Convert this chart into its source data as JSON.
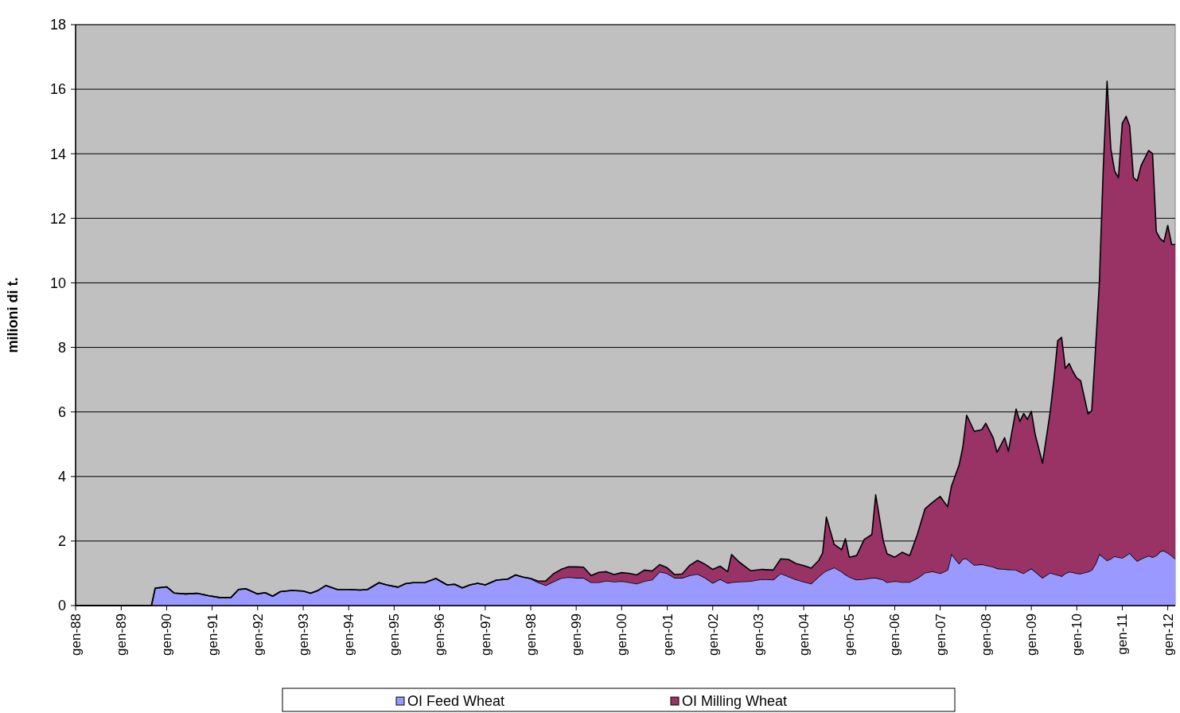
{
  "chart_data": {
    "type": "area",
    "stacked": true,
    "ylabel": "milioni di t.",
    "x": [
      "1988-01",
      "1989-09",
      "1989-10",
      "1990-01",
      "1990-03",
      "1990-06",
      "1990-09",
      "1990-12",
      "1991-03",
      "1991-06",
      "1991-08",
      "1991-10",
      "1992-01",
      "1992-03",
      "1992-05",
      "1992-07",
      "1992-10",
      "1993-01",
      "1993-03",
      "1993-05",
      "1993-07",
      "1993-10",
      "1994-01",
      "1994-04",
      "1994-06",
      "1994-09",
      "1994-11",
      "1995-02",
      "1995-04",
      "1995-06",
      "1995-09",
      "1995-12",
      "1996-03",
      "1996-05",
      "1996-07",
      "1996-09",
      "1996-11",
      "1997-01",
      "1997-04",
      "1997-07",
      "1997-09",
      "1997-11",
      "1998-01",
      "1998-03",
      "1998-05",
      "1998-07",
      "1998-09",
      "1998-11",
      "1999-01",
      "1999-03",
      "1999-05",
      "1999-07",
      "1999-09",
      "1999-11",
      "2000-01",
      "2000-03",
      "2000-05",
      "2000-07",
      "2000-09",
      "2000-11",
      "2001-01",
      "2001-03",
      "2001-05",
      "2001-07",
      "2001-09",
      "2001-11",
      "2002-01",
      "2002-03",
      "2002-05",
      "2002-06",
      "2002-08",
      "2002-11",
      "2003-02",
      "2003-05",
      "2003-07",
      "2003-09",
      "2003-11",
      "2004-01",
      "2004-03",
      "2004-05",
      "2004-06",
      "2004-07",
      "2004-09",
      "2004-11",
      "2004-12",
      "2005-01",
      "2005-03",
      "2005-05",
      "2005-07",
      "2005-08",
      "2005-10",
      "2005-11",
      "2006-01",
      "2006-03",
      "2006-05",
      "2006-07",
      "2006-09",
      "2006-11",
      "2007-01",
      "2007-03",
      "2007-04",
      "2007-06",
      "2007-07",
      "2007-08",
      "2007-10",
      "2007-12",
      "2008-01",
      "2008-03",
      "2008-04",
      "2008-06",
      "2008-07",
      "2008-09",
      "2008-10",
      "2008-11",
      "2008-12",
      "2009-01",
      "2009-02",
      "2009-04",
      "2009-06",
      "2009-07",
      "2009-08",
      "2009-09",
      "2009-10",
      "2009-11",
      "2009-12",
      "2010-01",
      "2010-02",
      "2010-04",
      "2010-05",
      "2010-06",
      "2010-07",
      "2010-08",
      "2010-09",
      "2010-10",
      "2010-11",
      "2010-12",
      "2011-01",
      "2011-02",
      "2011-03",
      "2011-04",
      "2011-05",
      "2011-06",
      "2011-08",
      "2011-09",
      "2011-10",
      "2011-11",
      "2011-12",
      "2012-01",
      "2012-02",
      "2012-03"
    ],
    "series": [
      {
        "name": "OI Feed Wheat",
        "color": "#9999ff",
        "values": [
          0,
          0,
          0.54,
          0.58,
          0.39,
          0.36,
          0.38,
          0.31,
          0.25,
          0.25,
          0.5,
          0.52,
          0.36,
          0.4,
          0.29,
          0.43,
          0.47,
          0.45,
          0.38,
          0.47,
          0.62,
          0.5,
          0.5,
          0.48,
          0.5,
          0.71,
          0.64,
          0.57,
          0.68,
          0.71,
          0.71,
          0.84,
          0.64,
          0.66,
          0.55,
          0.64,
          0.69,
          0.64,
          0.79,
          0.82,
          0.95,
          0.88,
          0.84,
          0.72,
          0.63,
          0.74,
          0.85,
          0.88,
          0.86,
          0.86,
          0.72,
          0.72,
          0.77,
          0.74,
          0.76,
          0.72,
          0.68,
          0.76,
          0.8,
          1.05,
          1.0,
          0.86,
          0.86,
          0.94,
          0.98,
          0.86,
          0.7,
          0.82,
          0.7,
          0.72,
          0.74,
          0.76,
          0.82,
          0.8,
          1.0,
          0.9,
          0.81,
          0.74,
          0.68,
          0.9,
          1.0,
          1.08,
          1.18,
          1.05,
          0.96,
          0.89,
          0.8,
          0.82,
          0.86,
          0.86,
          0.8,
          0.72,
          0.76,
          0.73,
          0.73,
          0.85,
          1.02,
          1.06,
          1.0,
          1.1,
          1.6,
          1.3,
          1.45,
          1.45,
          1.26,
          1.28,
          1.25,
          1.2,
          1.15,
          1.13,
          1.12,
          1.11,
          1.05,
          1.0,
          1.08,
          1.15,
          1.05,
          0.86,
          1.02,
          0.98,
          0.95,
          0.91,
          1.0,
          1.05,
          1.03,
          1.0,
          0.99,
          1.05,
          1.1,
          1.3,
          1.6,
          1.5,
          1.4,
          1.45,
          1.53,
          1.5,
          1.48,
          1.55,
          1.63,
          1.5,
          1.38,
          1.45,
          1.55,
          1.5,
          1.55,
          1.68,
          1.7,
          1.63,
          1.55,
          1.45
        ]
      },
      {
        "name": "OI Milling Wheat",
        "color": "#993366",
        "values": [
          0,
          0,
          0,
          0,
          0,
          0,
          0,
          0,
          0,
          0,
          0,
          0,
          0,
          0,
          0,
          0,
          0,
          0,
          0,
          0,
          0,
          0,
          0,
          0,
          0,
          0,
          0,
          0,
          0,
          0,
          0,
          0,
          0,
          0,
          0,
          0,
          0,
          0,
          0,
          0,
          0,
          0,
          0,
          0.04,
          0.13,
          0.24,
          0.27,
          0.32,
          0.34,
          0.33,
          0.21,
          0.31,
          0.28,
          0.22,
          0.26,
          0.28,
          0.27,
          0.34,
          0.27,
          0.22,
          0.17,
          0.1,
          0.12,
          0.31,
          0.42,
          0.42,
          0.42,
          0.4,
          0.35,
          0.86,
          0.61,
          0.32,
          0.3,
          0.3,
          0.45,
          0.53,
          0.49,
          0.5,
          0.48,
          0.5,
          0.63,
          1.66,
          0.72,
          0.68,
          1.11,
          0.61,
          0.75,
          1.23,
          1.34,
          2.57,
          1.2,
          0.88,
          0.74,
          0.92,
          0.82,
          1.35,
          1.98,
          2.14,
          2.38,
          1.96,
          2.1,
          3.05,
          3.45,
          4.45,
          4.14,
          4.17,
          4.4,
          4.0,
          3.6,
          4.07,
          3.66,
          4.98,
          4.65,
          4.95,
          4.69,
          4.87,
          4.25,
          3.55,
          4.97,
          6.02,
          7.26,
          7.4,
          6.35,
          6.45,
          6.22,
          6.05,
          5.98,
          4.89,
          4.94,
          6.7,
          8.4,
          12.0,
          14.85,
          12.7,
          11.93,
          11.76,
          13.46,
          13.61,
          13.24,
          11.76,
          11.78,
          12.18,
          12.55,
          12.5,
          10.04,
          9.69,
          9.57,
          10.15,
          9.64,
          9.74
        ]
      }
    ],
    "xlim": [
      "1988-01",
      "2012-03"
    ],
    "xticks": [
      {
        "value": "1988-01",
        "label": "gen-88"
      },
      {
        "value": "1989-01",
        "label": "gen-89"
      },
      {
        "value": "1990-01",
        "label": "gen-90"
      },
      {
        "value": "1991-01",
        "label": "gen-91"
      },
      {
        "value": "1992-01",
        "label": "gen-92"
      },
      {
        "value": "1993-01",
        "label": "gen-93"
      },
      {
        "value": "1994-01",
        "label": "gen-94"
      },
      {
        "value": "1995-01",
        "label": "gen-95"
      },
      {
        "value": "1996-01",
        "label": "gen-96"
      },
      {
        "value": "1997-01",
        "label": "gen-97"
      },
      {
        "value": "1998-01",
        "label": "gen-98"
      },
      {
        "value": "1999-01",
        "label": "gen-99"
      },
      {
        "value": "2000-01",
        "label": "gen-00"
      },
      {
        "value": "2001-01",
        "label": "gen-01"
      },
      {
        "value": "2002-01",
        "label": "gen-02"
      },
      {
        "value": "2003-01",
        "label": "gen-03"
      },
      {
        "value": "2004-01",
        "label": "gen-04"
      },
      {
        "value": "2005-01",
        "label": "gen-05"
      },
      {
        "value": "2006-01",
        "label": "gen-06"
      },
      {
        "value": "2007-01",
        "label": "gen-07"
      },
      {
        "value": "2008-01",
        "label": "gen-08"
      },
      {
        "value": "2009-01",
        "label": "gen-09"
      },
      {
        "value": "2010-01",
        "label": "gen-10"
      },
      {
        "value": "2011-01",
        "label": "gen-11"
      },
      {
        "value": "2012-01",
        "label": "gen-12"
      }
    ],
    "ylim": [
      0,
      18
    ],
    "yticks": [
      0,
      2,
      4,
      6,
      8,
      10,
      12,
      14,
      16,
      18
    ],
    "grid": "y",
    "legend": "bottom"
  }
}
